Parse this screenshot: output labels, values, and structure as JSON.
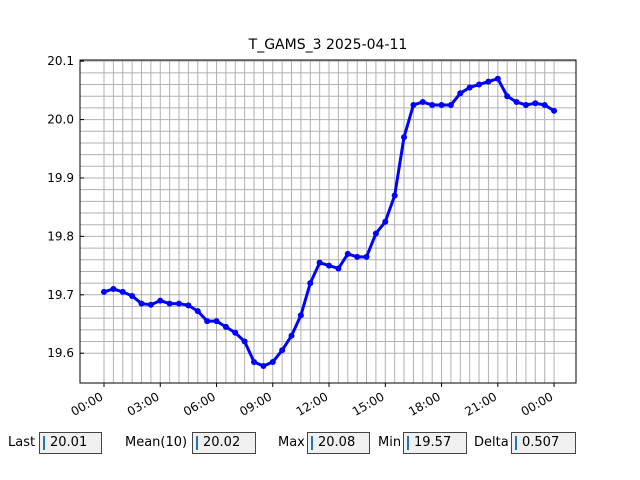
{
  "chart_data": {
    "type": "line",
    "title": "T_GAMS_3 2025-04-11",
    "x": [
      0,
      0.5,
      1,
      1.5,
      2,
      2.5,
      3,
      3.5,
      4,
      4.5,
      5,
      5.5,
      6,
      6.5,
      7,
      7.5,
      8,
      8.5,
      9,
      9.5,
      10,
      10.5,
      11,
      11.5,
      12,
      12.5,
      13,
      13.5,
      14,
      14.5,
      15,
      15.5,
      16,
      16.5,
      17,
      17.5,
      18,
      18.5,
      19,
      19.5,
      20,
      20.5,
      21,
      21.5,
      22,
      22.5,
      23,
      23.5,
      24
    ],
    "series": [
      {
        "color": "#0000ff",
        "values": [
          19.705,
          19.71,
          19.705,
          19.698,
          19.685,
          19.683,
          19.69,
          19.685,
          19.685,
          19.682,
          19.672,
          19.655,
          19.655,
          19.645,
          19.635,
          19.62,
          19.585,
          19.578,
          19.585,
          19.605,
          19.63,
          19.665,
          19.72,
          19.755,
          19.75,
          19.745,
          19.77,
          19.765,
          19.765,
          19.805,
          19.825,
          19.87,
          19.97,
          20.025,
          20.03,
          20.025,
          20.025,
          20.025,
          20.045,
          20.055,
          20.06,
          20.065,
          20.07,
          20.04,
          20.03,
          20.025,
          20.028,
          20.025,
          20.015
        ]
      }
    ],
    "xlim": [
      -1.28,
      25.17
    ],
    "ylim": [
      19.549,
      20.102
    ],
    "xticks": [
      {
        "value": 0,
        "label": "00:00"
      },
      {
        "value": 3,
        "label": "03:00"
      },
      {
        "value": 6,
        "label": "06:00"
      },
      {
        "value": 9,
        "label": "09:00"
      },
      {
        "value": 12,
        "label": "12:00"
      },
      {
        "value": 15,
        "label": "15:00"
      },
      {
        "value": 18,
        "label": "18:00"
      },
      {
        "value": 21,
        "label": "21:00"
      },
      {
        "value": 24,
        "label": "00:00"
      }
    ],
    "yticks": [
      19.6,
      19.7,
      19.8,
      19.9,
      {
        "value": 20,
        "label": "20.0"
      },
      20.1
    ],
    "grid": true
  },
  "textboxes": [
    {
      "label": "Last",
      "value": "20.01"
    },
    {
      "label": "Mean(10)",
      "value": "20.02"
    },
    {
      "label": "Max",
      "value": "20.08"
    },
    {
      "label": "Min",
      "value": "19.57"
    },
    {
      "label": "Delta",
      "value": "0.507"
    }
  ]
}
